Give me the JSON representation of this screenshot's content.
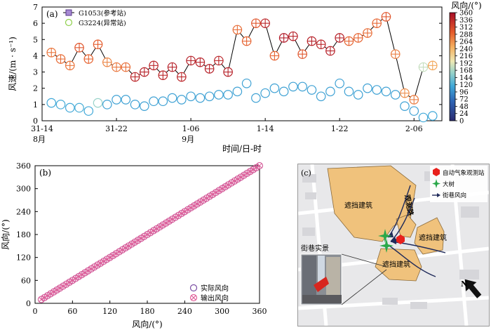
{
  "chart_data": [
    {
      "panel": "(a)",
      "type": "scatter",
      "ylabel": "风速/(m · s⁻¹)",
      "xlabel": "时间/日-时",
      "ylim": [
        0,
        7
      ],
      "yticks": [
        0,
        1,
        2,
        3,
        4,
        5,
        6,
        7
      ],
      "xlim": [
        0,
        43
      ],
      "xticks": [
        {
          "x": 0,
          "label": "31-14",
          "sub": "8月"
        },
        {
          "x": 8,
          "label": "31-22",
          "sub": ""
        },
        {
          "x": 16,
          "label": "1-06",
          "sub": "9月"
        },
        {
          "x": 24,
          "label": "1-14",
          "sub": ""
        },
        {
          "x": 32,
          "label": "1-22",
          "sub": ""
        },
        {
          "x": 40,
          "label": "2-06",
          "sub": ""
        }
      ],
      "colorbar": {
        "title": "风向/(°)",
        "min": 0,
        "max": 360,
        "ticks": [
          0,
          24,
          48,
          72,
          96,
          120,
          144,
          168,
          192,
          216,
          240,
          264,
          288,
          312,
          336,
          360
        ]
      },
      "series": [
        {
          "name": "G1053(参考站)",
          "marker": "circle-plus",
          "points": [
            [
              1,
              4.2,
              280
            ],
            [
              2,
              3.8,
              285
            ],
            [
              3,
              3.4,
              280
            ],
            [
              4,
              4.5,
              300
            ],
            [
              5,
              3.8,
              290
            ],
            [
              6,
              4.7,
              295
            ],
            [
              7,
              3.6,
              270
            ],
            [
              8,
              3.3,
              280
            ],
            [
              9,
              3.3,
              285
            ],
            [
              10,
              2.7,
              340
            ],
            [
              11,
              3.0,
              345
            ],
            [
              12,
              3.4,
              340
            ],
            [
              13,
              2.8,
              340
            ],
            [
              14,
              3.3,
              345
            ],
            [
              15,
              2.7,
              340
            ],
            [
              16,
              3.7,
              345
            ],
            [
              17,
              3.6,
              345
            ],
            [
              18,
              3.2,
              345
            ],
            [
              19,
              3.7,
              340
            ],
            [
              20,
              3.0,
              345
            ],
            [
              21,
              5.6,
              285
            ],
            [
              22,
              4.9,
              290
            ],
            [
              23,
              6.0,
              300
            ],
            [
              24,
              6.0,
              340
            ],
            [
              25,
              4.0,
              290
            ],
            [
              26,
              5.1,
              350
            ],
            [
              27,
              5.2,
              345
            ],
            [
              28,
              4.1,
              300
            ],
            [
              29,
              4.9,
              345
            ],
            [
              30,
              4.7,
              340
            ],
            [
              31,
              4.3,
              345
            ],
            [
              32,
              5.1,
              345
            ],
            [
              33,
              4.9,
              290
            ],
            [
              34,
              5.1,
              290
            ],
            [
              35,
              5.4,
              285
            ],
            [
              36,
              6.0,
              290
            ],
            [
              37,
              6.4,
              300
            ],
            [
              38,
              4.1,
              275
            ],
            [
              39,
              1.7,
              265
            ],
            [
              40,
              1.3,
              275
            ],
            [
              41,
              3.3,
              180
            ],
            [
              42,
              3.4,
              250
            ]
          ]
        },
        {
          "name": "G3224(异常站)",
          "marker": "circle",
          "points": [
            [
              1,
              1.1,
              115
            ],
            [
              2,
              1.0,
              118
            ],
            [
              3,
              0.8,
              115
            ],
            [
              4,
              0.8,
              120
            ],
            [
              5,
              0.6,
              115
            ],
            [
              6,
              1.1,
              160
            ],
            [
              7,
              1.0,
              110
            ],
            [
              8,
              1.3,
              110
            ],
            [
              9,
              1.3,
              110
            ],
            [
              10,
              1.0,
              110
            ],
            [
              11,
              0.9,
              110
            ],
            [
              12,
              1.2,
              110
            ],
            [
              13,
              1.2,
              110
            ],
            [
              14,
              1.4,
              110
            ],
            [
              15,
              1.3,
              110
            ],
            [
              16,
              1.5,
              110
            ],
            [
              17,
              1.4,
              110
            ],
            [
              18,
              1.5,
              110
            ],
            [
              19,
              1.6,
              110
            ],
            [
              20,
              1.6,
              110
            ],
            [
              21,
              1.8,
              110
            ],
            [
              22,
              2.3,
              110
            ],
            [
              23,
              1.4,
              110
            ],
            [
              24,
              1.7,
              110
            ],
            [
              25,
              2.0,
              110
            ],
            [
              26,
              1.8,
              110
            ],
            [
              27,
              2.1,
              110
            ],
            [
              28,
              2.1,
              110
            ],
            [
              29,
              1.9,
              110
            ],
            [
              30,
              1.5,
              110
            ],
            [
              31,
              1.8,
              110
            ],
            [
              32,
              2.3,
              110
            ],
            [
              33,
              1.8,
              110
            ],
            [
              34,
              1.6,
              110
            ],
            [
              35,
              2.0,
              110
            ],
            [
              36,
              1.9,
              110
            ],
            [
              37,
              1.8,
              110
            ],
            [
              38,
              1.6,
              110
            ],
            [
              39,
              0.9,
              110
            ],
            [
              40,
              0.6,
              110
            ],
            [
              41,
              0.2,
              115
            ],
            [
              42,
              0.3,
              115
            ]
          ]
        }
      ]
    },
    {
      "panel": "(b)",
      "type": "scatter",
      "xlabel": "风向/(°)",
      "ylabel": "风向/(°)",
      "xlim": [
        0,
        360
      ],
      "ylim": [
        0,
        360
      ],
      "xticks": [
        0,
        60,
        120,
        180,
        240,
        300,
        360
      ],
      "yticks": [
        0,
        60,
        120,
        180,
        240,
        300,
        360
      ],
      "step": 5,
      "legend": "bottom-right",
      "series": [
        {
          "name": "实际风向",
          "marker": "circle",
          "color": "#7b4ea3"
        },
        {
          "name": "输出风向",
          "marker": "circle-x",
          "color": "#e0609a"
        }
      ]
    }
  ],
  "map": {
    "panel": "(c)",
    "legend": [
      {
        "label": "自动气象观测站",
        "icon": "station-hexagon-icon"
      },
      {
        "label": "大树",
        "icon": "tree-star-icon"
      },
      {
        "label": "街巷风向",
        "icon": "arrow-icon"
      }
    ],
    "building_label": "遮挡建筑",
    "street_label": "观测路",
    "photo_label": "街巷实景",
    "north": "N"
  }
}
